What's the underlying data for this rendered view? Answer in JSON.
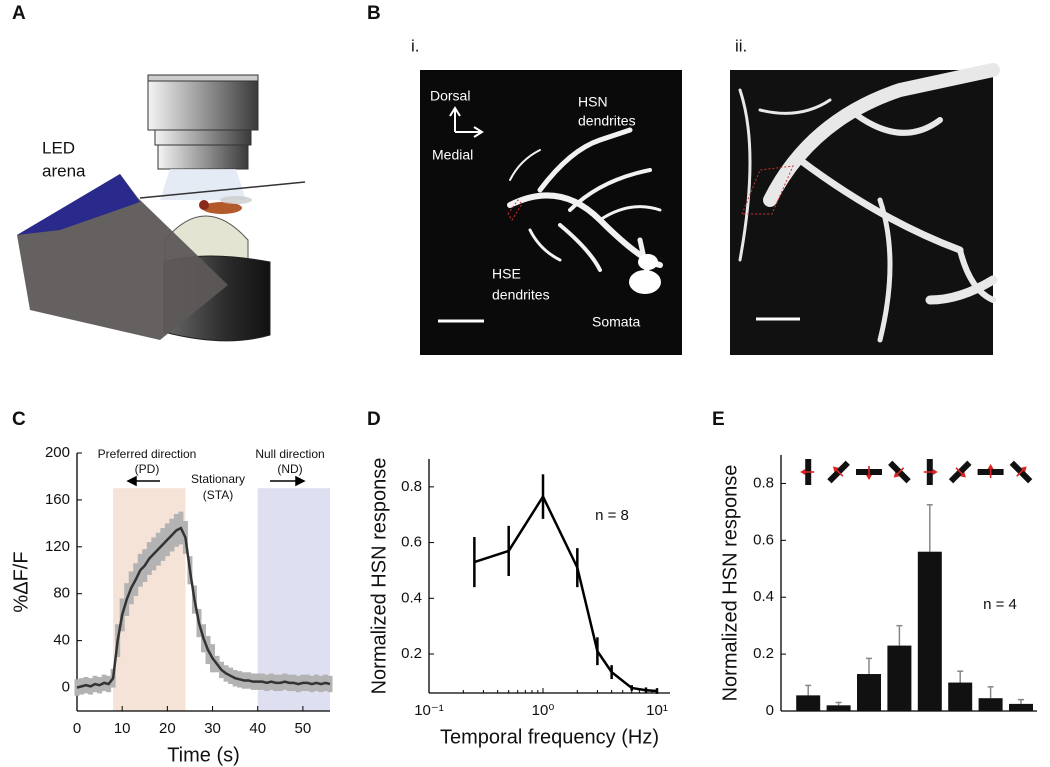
{
  "panel_labels": [
    "A",
    "B",
    "C",
    "D",
    "E"
  ],
  "panel_a": {
    "arena_label": [
      "LED",
      "arena"
    ]
  },
  "panel_b": {
    "sub_labels": [
      "i.",
      "ii."
    ],
    "dorsal": "Dorsal",
    "medial": "Medial",
    "hsn": [
      "HSN",
      "dendrites"
    ],
    "hse": [
      "HSE",
      "dendrites"
    ],
    "somata": "Somata"
  },
  "chart_data": [
    {
      "type": "line",
      "error_style": "band",
      "x_label": "Time (s)",
      "y_label": "%ΔF/F",
      "xlim": [
        0,
        56
      ],
      "ylim": [
        -20,
        200
      ],
      "xticks": [
        0,
        10,
        20,
        30,
        40,
        50
      ],
      "yticks": [
        0,
        40,
        80,
        120,
        160,
        200
      ],
      "color": "#333333",
      "error_color": "#b3b3b3",
      "regions": [
        {
          "x": [
            8,
            24
          ],
          "top": 170,
          "color": "#f4e3d6"
        },
        {
          "x": [
            40,
            56
          ],
          "top": 170,
          "color": "#dfdff2"
        }
      ],
      "annotations": [
        "Preferred direction",
        "(PD)",
        "Stationary",
        "(STA)",
        "Null direction",
        "(ND)"
      ],
      "x": [
        0,
        1,
        2,
        3,
        4,
        5,
        6,
        7,
        8,
        9,
        10,
        11,
        12,
        13,
        14,
        15,
        16,
        17,
        18,
        19,
        20,
        21,
        22,
        23,
        24,
        25,
        26,
        27,
        28,
        29,
        30,
        31,
        32,
        33,
        34,
        35,
        36,
        37,
        38,
        39,
        40,
        41,
        42,
        43,
        44,
        45,
        46,
        47,
        48,
        49,
        50,
        51,
        52,
        53,
        54,
        55,
        56
      ],
      "values": [
        0,
        1,
        2,
        1,
        3,
        2,
        4,
        3,
        8,
        40,
        62,
        75,
        85,
        92,
        100,
        104,
        110,
        114,
        118,
        122,
        126,
        130,
        134,
        136,
        128,
        100,
        75,
        55,
        42,
        32,
        25,
        20,
        15,
        12,
        10,
        8,
        7,
        6,
        6,
        5,
        5,
        5,
        4,
        5,
        4,
        4,
        5,
        4,
        4,
        3,
        4,
        4,
        3,
        4,
        3,
        4,
        3
      ],
      "errors": [
        7,
        7,
        7,
        7,
        7,
        7,
        7,
        7,
        8,
        14,
        14,
        14,
        14,
        14,
        14,
        14,
        14,
        14,
        14,
        14,
        14,
        14,
        14,
        14,
        14,
        12,
        12,
        12,
        12,
        12,
        12,
        7,
        7,
        7,
        7,
        7,
        7,
        7,
        7,
        7,
        7,
        7,
        7,
        7,
        7,
        7,
        7,
        7,
        7,
        7,
        7,
        7,
        7,
        7,
        7,
        7,
        7
      ]
    },
    {
      "type": "line",
      "error_style": "bar",
      "xscale": "log",
      "x_label": "Temporal frequency (Hz)",
      "y_label": "Normalized HSN response",
      "xlim": [
        0.1,
        13
      ],
      "ylim": [
        0.06,
        0.9
      ],
      "xticks": [
        {
          "value": 0.1,
          "label": "10⁻¹"
        },
        {
          "value": 1,
          "label": "10⁰"
        },
        {
          "value": 10,
          "label": "10¹"
        }
      ],
      "yticks": [
        0.2,
        0.4,
        0.6,
        0.8
      ],
      "color": "#000000",
      "annotations": [
        "n = 8"
      ],
      "x": [
        0.25,
        0.5,
        1,
        2,
        3,
        4,
        6,
        8,
        10
      ],
      "values": [
        0.53,
        0.57,
        0.765,
        0.51,
        0.21,
        0.135,
        0.078,
        0.07,
        0.067
      ],
      "errors": [
        0.09,
        0.09,
        0.08,
        0.07,
        0.05,
        0.025,
        0.01,
        0.01,
        0.01
      ]
    },
    {
      "type": "bar",
      "y_label": "Normalized HSN response",
      "ylim": [
        0,
        0.9
      ],
      "yticks": [
        0,
        0.2,
        0.4,
        0.6,
        0.8
      ],
      "color": "#111111",
      "error_color": "#888888",
      "annotations": [
        "n = 4"
      ],
      "categories": [
        null,
        null,
        null,
        null,
        null,
        null,
        null,
        null
      ],
      "values": [
        0.055,
        0.02,
        0.13,
        0.23,
        0.56,
        0.1,
        0.045,
        0.025
      ],
      "errors": [
        0.035,
        0.01,
        0.055,
        0.07,
        0.165,
        0.04,
        0.04,
        0.015
      ]
    }
  ]
}
